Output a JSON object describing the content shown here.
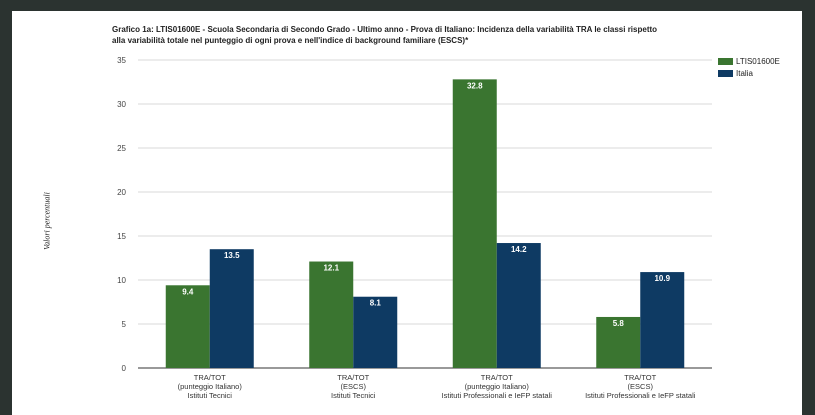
{
  "chart_data": {
    "type": "bar",
    "title_lines": [
      "Grafico 1a: LTIS01600E - Scuola Secondaria di Secondo Grado - Ultimo anno - Prova di Italiano: Incidenza della variabilità TRA le classi rispetto",
      "alla variabilità totale nel punteggio di ogni prova e nell'indice di background familiare (ESCS)*"
    ],
    "ylabel": "Valori percentuali",
    "xlabel": "",
    "ylim": [
      0,
      35
    ],
    "yticks": [
      0,
      5,
      10,
      15,
      20,
      25,
      30,
      35
    ],
    "grid": true,
    "legend_position": "right",
    "categories": [
      [
        "TRA/TOT",
        "(punteggio Italiano)",
        "Istituti Tecnici"
      ],
      [
        "TRA/TOT",
        "(ESCS)",
        "Istituti Tecnici"
      ],
      [
        "TRA/TOT",
        "(punteggio Italiano)",
        "Istituti Professionali e IeFP statali"
      ],
      [
        "TRA/TOT",
        "(ESCS)",
        "Istituti Professionali e IeFP statali"
      ]
    ],
    "series": [
      {
        "name": "LTIS01600E",
        "color": "#3a7530",
        "values": [
          9.4,
          12.1,
          32.8,
          5.8
        ]
      },
      {
        "name": "Italia",
        "color": "#0e3a63",
        "values": [
          13.5,
          8.1,
          14.2,
          10.9
        ]
      }
    ]
  }
}
